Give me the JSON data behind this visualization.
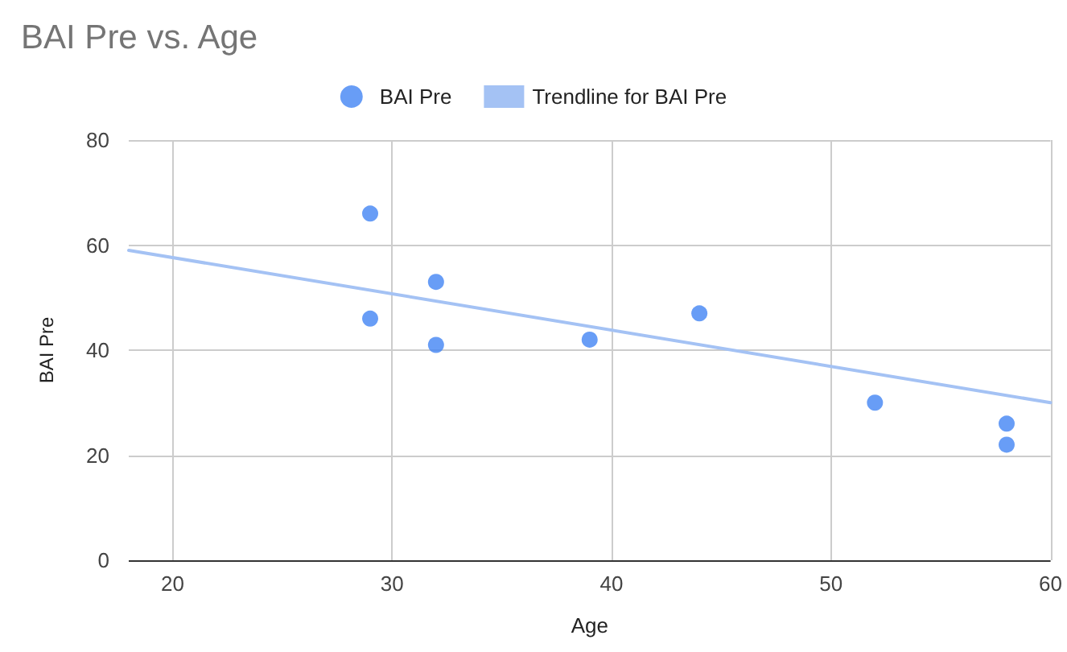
{
  "chart_data": {
    "type": "scatter",
    "title": "BAI Pre vs. Age",
    "xlabel": "Age",
    "ylabel": "BAI Pre",
    "xlim": [
      18,
      60
    ],
    "xticks": [
      20,
      30,
      40,
      50,
      60
    ],
    "ylim": [
      0,
      80
    ],
    "yticks": [
      0,
      20,
      40,
      60,
      80
    ],
    "grid": true,
    "legend": "top",
    "series": [
      {
        "name": "BAI Pre",
        "color": "#4285f4",
        "marker": "circle",
        "x": [
          29,
          29,
          32,
          32,
          39,
          44,
          52,
          58,
          58
        ],
        "values": [
          66,
          46,
          53,
          41,
          42,
          47,
          30,
          26,
          22
        ]
      },
      {
        "name": "Trendline for BAI Pre",
        "type": "line",
        "marker": "none",
        "color": "#a4c2f4",
        "x": [
          18,
          60
        ],
        "values": [
          59,
          30
        ]
      }
    ]
  }
}
